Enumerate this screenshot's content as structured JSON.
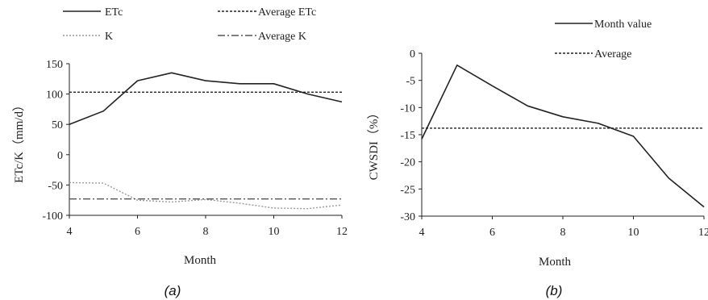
{
  "chart_data": [
    {
      "type": "line",
      "caption": "(a)",
      "xlabel": "Month",
      "ylabel": "ETc/K（mm/d）",
      "xlim": [
        4,
        12
      ],
      "ylim": [
        -100,
        150
      ],
      "xticks": [
        "4",
        "6",
        "8",
        "10",
        "12"
      ],
      "yticks": [
        "150",
        "100",
        "50",
        "0",
        "-50",
        "-100"
      ],
      "grid": false,
      "legend_position": "top",
      "x": [
        4,
        5,
        6,
        7,
        8,
        9,
        10,
        11,
        12
      ],
      "series": [
        {
          "name": "ETc",
          "style": "solid",
          "color": "#222222",
          "values": [
            50,
            72,
            122,
            135,
            122,
            117,
            117,
            100,
            87
          ]
        },
        {
          "name": "Average ETc",
          "style": "dashed",
          "color": "#222222",
          "values": [
            103,
            103,
            103,
            103,
            103,
            103,
            103,
            103,
            103
          ]
        },
        {
          "name": "K",
          "style": "dotted",
          "color": "#9a9a9a",
          "values": [
            -46,
            -47,
            -75,
            -78,
            -74,
            -80,
            -88,
            -89,
            -83
          ]
        },
        {
          "name": "Average K",
          "style": "dash-dot",
          "color": "#555555",
          "values": [
            -73,
            -73,
            -73,
            -73,
            -73,
            -73,
            -73,
            -73,
            -73
          ]
        }
      ]
    },
    {
      "type": "line",
      "caption": "(b)",
      "xlabel": "Month",
      "ylabel": "CWSDI（%）",
      "xlim": [
        4,
        12
      ],
      "ylim": [
        -30,
        0
      ],
      "xticks": [
        "4",
        "6",
        "8",
        "10",
        "12"
      ],
      "yticks": [
        "0",
        "-5",
        "-10",
        "-15",
        "-20",
        "-25",
        "-30"
      ],
      "grid": false,
      "legend_position": "top-right",
      "x": [
        4,
        5,
        6,
        7,
        8,
        9,
        10,
        11,
        12
      ],
      "series": [
        {
          "name": "Month value",
          "style": "solid",
          "color": "#222222",
          "values": [
            -15.8,
            -2.2,
            -6.0,
            -9.7,
            -11.7,
            -12.9,
            -15.3,
            -23.0,
            -28.3
          ]
        },
        {
          "name": "Average",
          "style": "dashed",
          "color": "#222222",
          "values": [
            -13.8,
            -13.8,
            -13.8,
            -13.8,
            -13.8,
            -13.8,
            -13.8,
            -13.8,
            -13.8
          ]
        }
      ]
    }
  ]
}
